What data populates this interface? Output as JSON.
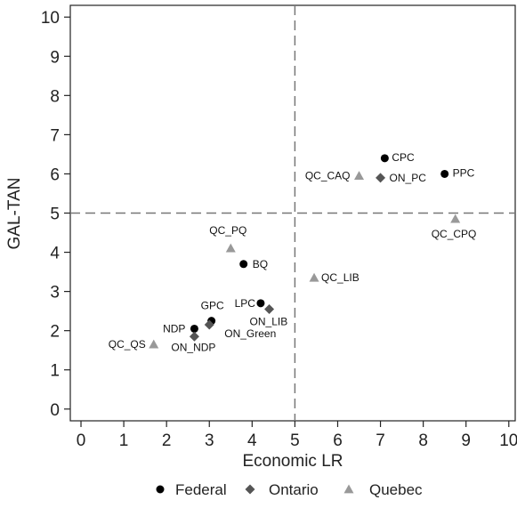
{
  "chart_data": {
    "type": "scatter",
    "title": "",
    "xlabel": "Economic LR",
    "ylabel": "GAL-TAN",
    "xlim": [
      -0.25,
      10.15
    ],
    "ylim": [
      -0.3,
      10.3
    ],
    "xticks": [
      0,
      1,
      2,
      3,
      4,
      5,
      6,
      7,
      8,
      9,
      10
    ],
    "yticks": [
      0,
      1,
      2,
      3,
      4,
      5,
      6,
      7,
      8,
      9,
      10
    ],
    "reference_lines": {
      "x": 5,
      "y": 5,
      "style": "dashed"
    },
    "grid": false,
    "legend_position": "bottom",
    "series": [
      {
        "name": "Federal",
        "marker": "circle",
        "color": "#000000",
        "points": [
          {
            "label": "CPC",
            "x": 7.1,
            "y": 6.4
          },
          {
            "label": "PPC",
            "x": 8.5,
            "y": 6.0
          },
          {
            "label": "BQ",
            "x": 3.8,
            "y": 3.7
          },
          {
            "label": "LPC",
            "x": 4.2,
            "y": 2.7
          },
          {
            "label": "GPC",
            "x": 3.05,
            "y": 2.25
          },
          {
            "label": "NDP",
            "x": 2.65,
            "y": 2.05
          }
        ]
      },
      {
        "name": "Ontario",
        "marker": "diamond",
        "color": "#555555",
        "points": [
          {
            "label": "ON_PC",
            "x": 7.0,
            "y": 5.9
          },
          {
            "label": "ON_LIB",
            "x": 4.4,
            "y": 2.55
          },
          {
            "label": "ON_Green",
            "x": 3.0,
            "y": 2.15
          },
          {
            "label": "ON_NDP",
            "x": 2.65,
            "y": 1.85
          }
        ]
      },
      {
        "name": "Quebec",
        "marker": "triangle",
        "color": "#999999",
        "points": [
          {
            "label": "QC_CAQ",
            "x": 6.5,
            "y": 5.95
          },
          {
            "label": "QC_CPQ",
            "x": 8.75,
            "y": 4.85
          },
          {
            "label": "QC_PQ",
            "x": 3.5,
            "y": 4.1
          },
          {
            "label": "QC_LIB",
            "x": 5.45,
            "y": 3.35
          },
          {
            "label": "QC_QS",
            "x": 1.7,
            "y": 1.65
          }
        ]
      }
    ]
  }
}
